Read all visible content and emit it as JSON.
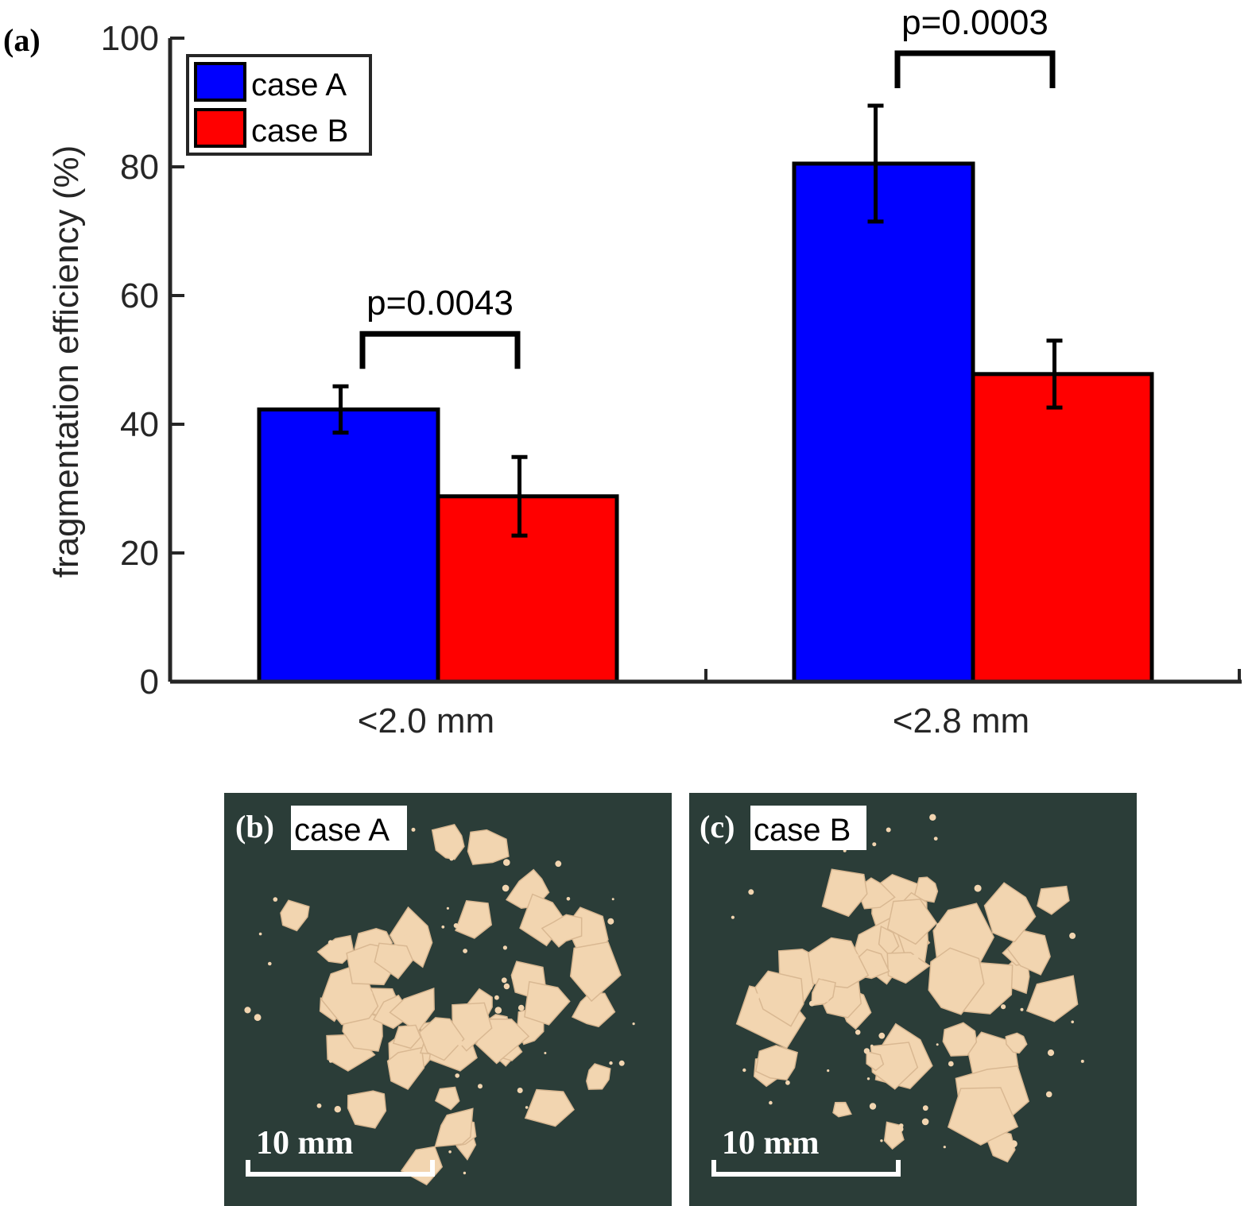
{
  "chart_data": {
    "type": "bar",
    "panel_label": "(a)",
    "categories": [
      "<2.0 mm",
      "<2.8 mm"
    ],
    "series": [
      {
        "name": "case A",
        "color": "#0000ff",
        "values": [
          42.3,
          80.5
        ],
        "errors": [
          3.6,
          9.0
        ]
      },
      {
        "name": "case B",
        "color": "#ff0000",
        "values": [
          28.8,
          47.8
        ],
        "errors": [
          6.1,
          5.2
        ]
      }
    ],
    "significance": [
      {
        "category_index": 0,
        "label": "p=0.0043"
      },
      {
        "category_index": 1,
        "label": "p=0.0003"
      }
    ],
    "ylabel": "fragmentation efficiency (%)",
    "xlabel": "",
    "ylim": [
      0,
      100
    ],
    "yticks": [
      0,
      20,
      40,
      60,
      80,
      100
    ],
    "grid": false,
    "legend": "top-left"
  },
  "photos": [
    {
      "label": "(b)",
      "caption": "case A",
      "scale_bar": "10 mm",
      "background": "#2b3d38",
      "fragment_color": "#f2d5b0"
    },
    {
      "label": "(c)",
      "caption": "case B",
      "scale_bar": "10 mm",
      "background": "#2b3d38",
      "fragment_color": "#f2d5b0"
    }
  ]
}
